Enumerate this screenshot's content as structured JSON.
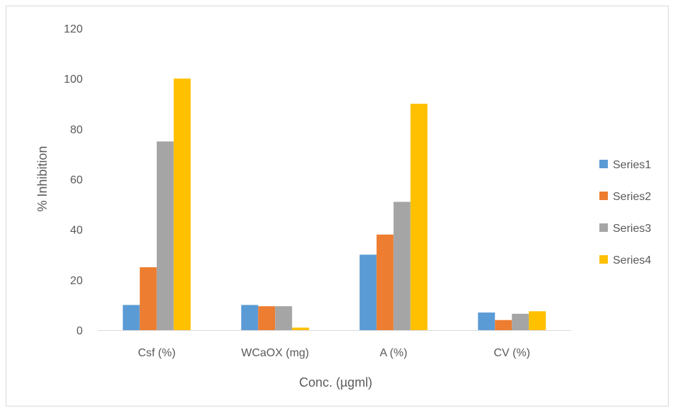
{
  "chart_data": {
    "type": "bar",
    "title": "",
    "xlabel": "Conc. (µgml)",
    "ylabel": "% Inhibition",
    "categories": [
      "Csf (%)",
      "WCaOX (mg)",
      "A (%)",
      "CV (%)"
    ],
    "series": [
      {
        "name": "Series1",
        "color": "#5b9bd5",
        "values": [
          10,
          10,
          30,
          7
        ]
      },
      {
        "name": "Series2",
        "color": "#ed7d31",
        "values": [
          25,
          9.5,
          38,
          4
        ]
      },
      {
        "name": "Series3",
        "color": "#a5a5a5",
        "values": [
          75,
          9.5,
          51,
          6.5
        ]
      },
      {
        "name": "Series4",
        "color": "#ffc000",
        "values": [
          100,
          1,
          90,
          7.5
        ]
      }
    ],
    "ylim": [
      0,
      120
    ],
    "yticks": [
      0,
      20,
      40,
      60,
      80,
      100,
      120
    ],
    "grid": false,
    "legend_position": "right"
  }
}
